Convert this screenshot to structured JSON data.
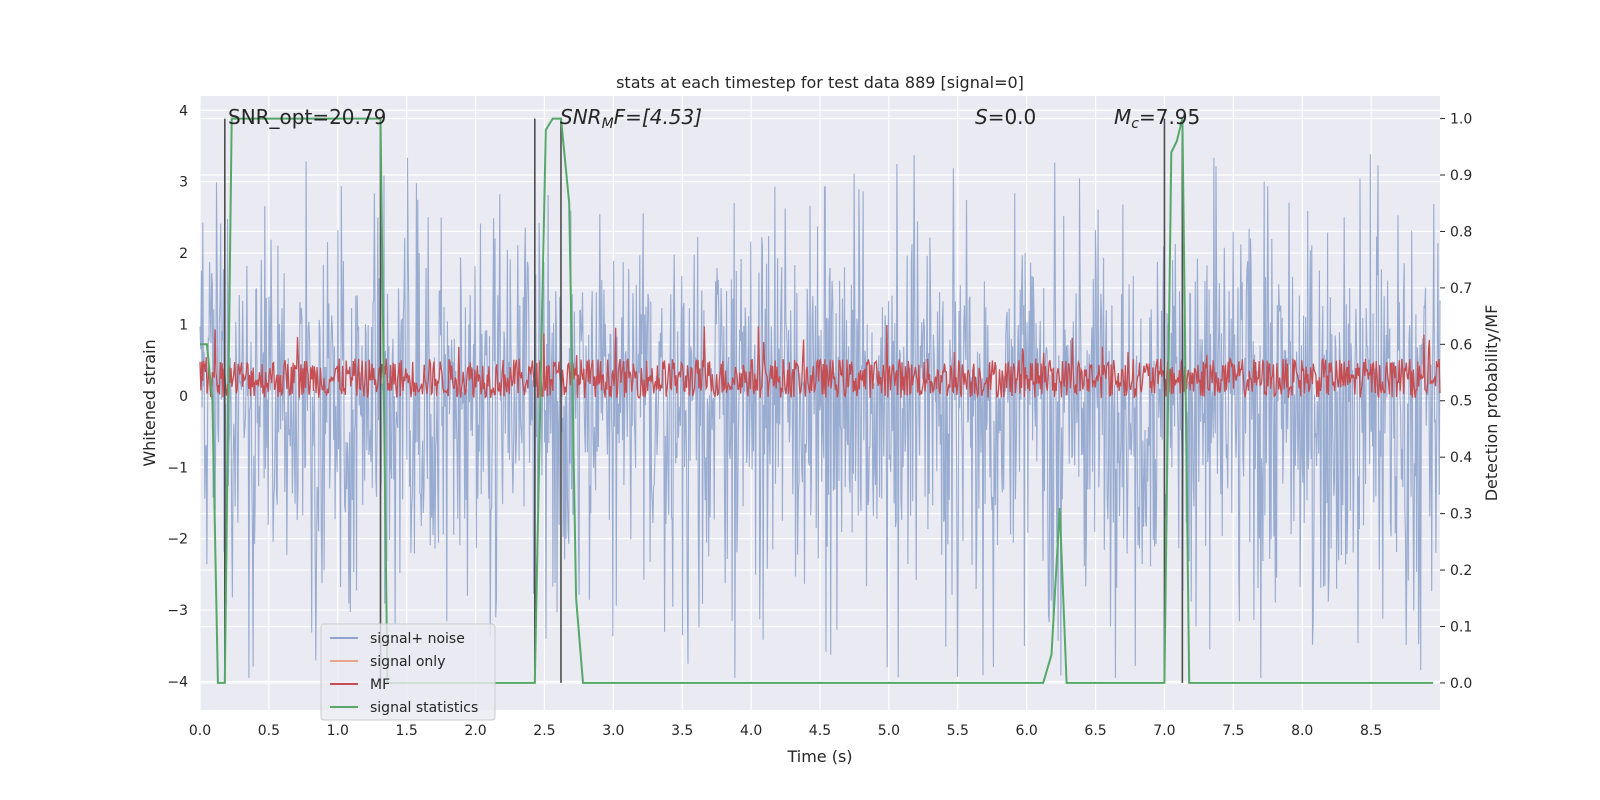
{
  "chart_data": {
    "type": "line",
    "title": "stats at each timestep for test data 889 [signal=0]",
    "xlabel": "Time (s)",
    "ylabel": "Whitened strain",
    "ylabel_right": "Detection probability/MF",
    "xlim": [
      0.0,
      9.0
    ],
    "ylim": [
      -4.4,
      4.2
    ],
    "ylim_right": [
      -0.048,
      1.04
    ],
    "x_ticks": [
      "0.0",
      "0.5",
      "1.0",
      "1.5",
      "2.0",
      "2.5",
      "3.0",
      "3.5",
      "4.0",
      "4.5",
      "5.0",
      "5.5",
      "6.0",
      "6.5",
      "7.0",
      "7.5",
      "8.0",
      "8.5"
    ],
    "y_ticks": [
      "−4",
      "−3",
      "−2",
      "−1",
      "0",
      "1",
      "2",
      "3",
      "4"
    ],
    "y_ticks_right": [
      "0.0",
      "0.1",
      "0.2",
      "0.3",
      "0.4",
      "0.5",
      "0.6",
      "0.7",
      "0.8",
      "0.9",
      "1.0"
    ],
    "grid": true,
    "legend_position": "lower-left",
    "annotations": {
      "snr_opt": "SNR_opt=20.79",
      "snr_mf_main": "SNR",
      "snr_mf_sub": "M",
      "snr_mf_rest": "F=[4.53]",
      "s_main": "S",
      "s_rest": "=0.0",
      "mc_main": "M",
      "mc_sub": "c",
      "mc_rest": "=7.95"
    },
    "vlines_x": [
      0.18,
      1.31,
      2.43,
      2.62,
      7.0,
      7.13
    ],
    "series": [
      {
        "name": "signal+ noise",
        "color": "#8fa4cc",
        "axis": "left",
        "description": "whitened noise, roughly within -2.5..3.3 with spikes to -4",
        "amplitude_pos": 1.6,
        "amplitude_neg": 1.8
      },
      {
        "name": "signal only",
        "color": "#e8a58c",
        "axis": "left",
        "values": []
      },
      {
        "name": "MF",
        "color": "#c44e52",
        "axis": "right",
        "baseline": 0.54,
        "spread": 0.035
      },
      {
        "name": "signal statistics",
        "color": "#55a868",
        "axis": "right",
        "x": [
          0.0,
          0.05,
          0.09,
          0.13,
          0.18,
          0.23,
          0.27,
          0.31,
          1.25,
          1.31,
          1.36,
          1.4,
          2.38,
          2.43,
          2.47,
          2.51,
          2.56,
          2.62,
          2.68,
          2.73,
          2.78,
          2.84,
          6.12,
          6.18,
          6.24,
          6.29,
          6.33,
          6.95,
          7.0,
          7.05,
          7.09,
          7.13,
          7.18,
          7.22,
          8.95
        ],
        "values": [
          0.6,
          0.6,
          0.5,
          0.0,
          0.0,
          1.0,
          1.0,
          1.0,
          1.0,
          1.0,
          0.0,
          0.0,
          0.0,
          0.0,
          0.5,
          0.98,
          1.0,
          1.0,
          0.85,
          0.15,
          0.0,
          0.0,
          0.0,
          0.05,
          0.31,
          0.0,
          0.0,
          0.0,
          0.0,
          0.94,
          0.96,
          1.0,
          0.0,
          0.0,
          0.0
        ]
      }
    ]
  }
}
